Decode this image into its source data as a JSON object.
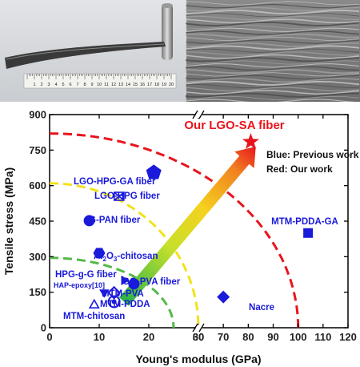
{
  "photos": [
    {
      "name": "fiber-photo",
      "ruler_numbers": [
        "1",
        "2",
        "3",
        "4",
        "5",
        "6",
        "7",
        "8",
        "9",
        "10",
        "11",
        "12",
        "13",
        "14",
        "15",
        "16",
        "17",
        "18",
        "19",
        "20"
      ]
    },
    {
      "name": "sem-cross-section"
    }
  ],
  "chart_data": {
    "type": "scatter",
    "title": "Our LGO-SA fiber",
    "xlabel": "Young's modulus (GPa)",
    "ylabel": "Tensile stress (MPa)",
    "xlim": [
      0,
      120
    ],
    "ylim": [
      0,
      900
    ],
    "x_ticks": [
      "0",
      "10",
      "20",
      "30",
      "60",
      "70",
      "80",
      "90",
      "100",
      "110",
      "120"
    ],
    "y_ticks": [
      "0",
      "150",
      "300",
      "450",
      "600",
      "750",
      "900"
    ],
    "x_axis_break": "between 30 and 60 GPa",
    "legend_text": [
      "Blue: Previous work",
      "Red: Our work"
    ],
    "colors": {
      "previous": "#1a1adb",
      "ours": "#e8141c"
    },
    "points": [
      {
        "label": "Our LGO-SA fiber",
        "x": 81,
        "y": 785,
        "marker": "star",
        "color": "#e8141c"
      },
      {
        "label": "LGO-HPG-GA fiber",
        "x": 21,
        "y": 655,
        "marker": "pentagon"
      },
      {
        "label": "LGO-HPG fiber",
        "x": 14,
        "y": 555,
        "marker": "boxed-x"
      },
      {
        "label": "G-PAN fiber",
        "x": 8,
        "y": 452,
        "marker": "circle"
      },
      {
        "label": "MTM-PDDA-GA",
        "x": 104,
        "y": 400,
        "marker": "square"
      },
      {
        "label": "Al2O3-chitosan",
        "x": 10,
        "y": 315,
        "marker": "hexagon"
      },
      {
        "label": "HPG-g-G fiber",
        "x": 15,
        "y": 200,
        "marker": "triangle-right"
      },
      {
        "label": "GO-PVA fiber",
        "x": 17,
        "y": 185,
        "marker": "circle"
      },
      {
        "label": "HAP-epoxy[10]",
        "x": 11,
        "y": 150,
        "marker": "triangle-down"
      },
      {
        "label": "MTM-PVA",
        "x": 13,
        "y": 148,
        "marker": "diamond-open"
      },
      {
        "label": "MTM-PDDA",
        "x": 13,
        "y": 110,
        "marker": "circle-open"
      },
      {
        "label": "MTM-chitosan",
        "x": 9,
        "y": 95,
        "marker": "triangle-open"
      },
      {
        "label": "Nacre",
        "x": 70,
        "y": 130,
        "marker": "diamond"
      }
    ],
    "arcs": [
      {
        "color": "#e8141c",
        "x_intercept": 100,
        "y_intercept": 820
      },
      {
        "color": "#f2e21a",
        "x_intercept": 60,
        "y_intercept": 610
      },
      {
        "color": "#55b84a",
        "x_intercept": 25,
        "y_intercept": 295
      }
    ],
    "trend_arrow": {
      "from": {
        "x": 15,
        "y": 110
      },
      "to": {
        "x": 83,
        "y": 765
      }
    }
  }
}
